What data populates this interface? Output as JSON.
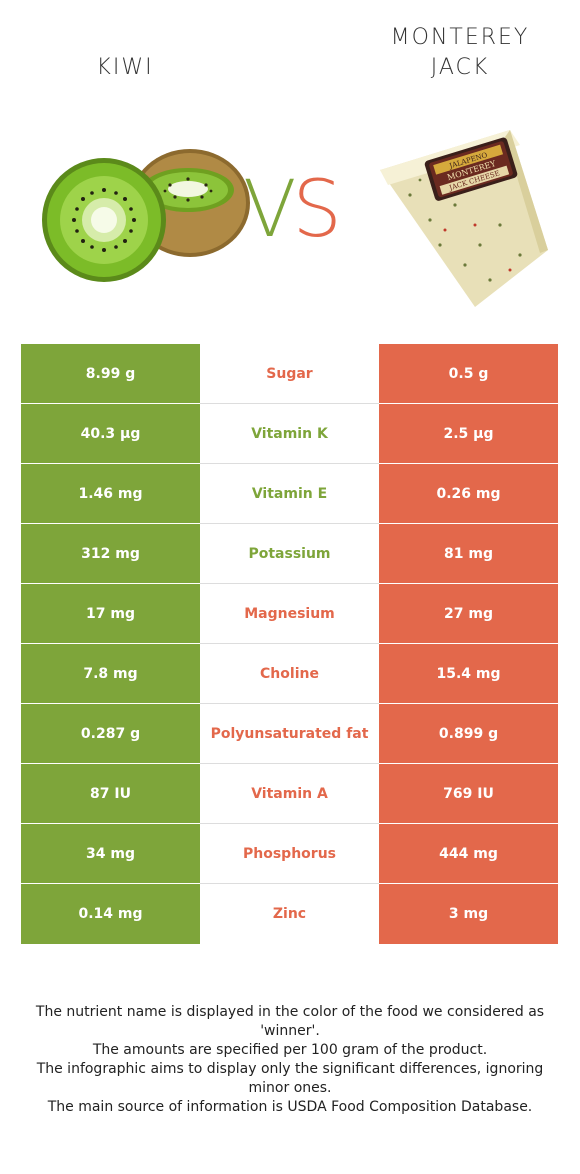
{
  "header": {
    "left_title": "KIWI",
    "right_title": "MONTEREY\nJACK",
    "vs_v": "V",
    "vs_s": "S"
  },
  "images": {
    "left": "kiwi-image",
    "right": "monterey-jack-cheese-image"
  },
  "cheese_label": {
    "line1": "JALAPENO",
    "line2": "MONTEREY",
    "line3": "JACK CHEESE"
  },
  "colors": {
    "left_accent": "#7ea53a",
    "right_accent": "#e3684b"
  },
  "rows": [
    {
      "left": "8.99 g",
      "nutrient": "Sugar",
      "right": "0.5 g",
      "winner": "right"
    },
    {
      "left": "40.3 µg",
      "nutrient": "Vitamin K",
      "right": "2.5 µg",
      "winner": "left"
    },
    {
      "left": "1.46 mg",
      "nutrient": "Vitamin E",
      "right": "0.26 mg",
      "winner": "left"
    },
    {
      "left": "312 mg",
      "nutrient": "Potassium",
      "right": "81 mg",
      "winner": "left"
    },
    {
      "left": "17 mg",
      "nutrient": "Magnesium",
      "right": "27 mg",
      "winner": "right"
    },
    {
      "left": "7.8 mg",
      "nutrient": "Choline",
      "right": "15.4 mg",
      "winner": "right"
    },
    {
      "left": "0.287 g",
      "nutrient": "Polyunsaturated fat",
      "right": "0.899 g",
      "winner": "right"
    },
    {
      "left": "87 IU",
      "nutrient": "Vitamin A",
      "right": "769 IU",
      "winner": "right"
    },
    {
      "left": "34 mg",
      "nutrient": "Phosphorus",
      "right": "444 mg",
      "winner": "right"
    },
    {
      "left": "0.14 mg",
      "nutrient": "Zinc",
      "right": "3 mg",
      "winner": "right"
    }
  ],
  "footer": {
    "line1": "The nutrient name is displayed in the color of the food we considered as 'winner'.",
    "line2": "The amounts are specified per 100 gram of the product.",
    "line3": "The infographic aims to display only the significant differences, ignoring minor ones.",
    "line4": "The main source of information is USDA Food Composition Database."
  }
}
